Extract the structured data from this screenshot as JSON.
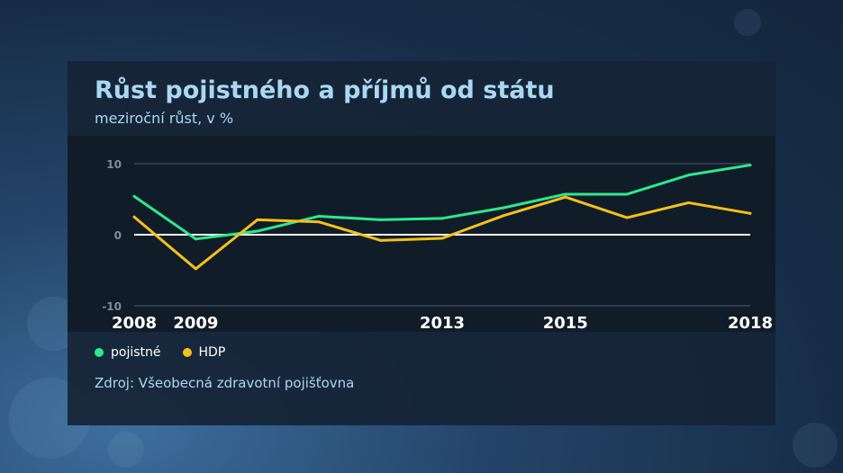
{
  "title": "Růst pojistného a příjmů od státu",
  "subtitle": "meziroční růst, v %",
  "source": "Zdroj: Všeobecná zdravotní pojišťovna",
  "colors": {
    "pojistne": "#2ee88a",
    "hdp": "#f2c11c",
    "title": "#a9d8f2",
    "zero_line": "#ffffff",
    "grid": "#4a5c70"
  },
  "chart_data": {
    "type": "line",
    "title": "Růst pojistného a příjmů od státu",
    "subtitle": "meziroční růst, v %",
    "x": [
      2008,
      2009,
      2010,
      2011,
      2012,
      2013,
      2014,
      2015,
      2016,
      2017,
      2018
    ],
    "x_tick_labels": [
      {
        "value": 2008,
        "label": "2008"
      },
      {
        "value": 2009,
        "label": "2009"
      },
      {
        "value": 2013,
        "label": "2013"
      },
      {
        "value": 2015,
        "label": "2015"
      },
      {
        "value": 2018,
        "label": "2018"
      }
    ],
    "y_ticks": [
      10,
      0,
      -10
    ],
    "ylim": [
      -10,
      10
    ],
    "grid": true,
    "legend_position": "bottom-left",
    "series": [
      {
        "name": "pojistné",
        "color": "#2ee88a",
        "values": [
          5.4,
          -0.6,
          0.5,
          2.6,
          2.1,
          2.3,
          3.8,
          5.7,
          5.7,
          8.4,
          9.8
        ]
      },
      {
        "name": "HDP",
        "color": "#f2c11c",
        "values": [
          2.5,
          -4.8,
          2.1,
          1.8,
          -0.8,
          -0.5,
          2.7,
          5.3,
          2.4,
          4.5,
          3.0
        ]
      }
    ]
  }
}
